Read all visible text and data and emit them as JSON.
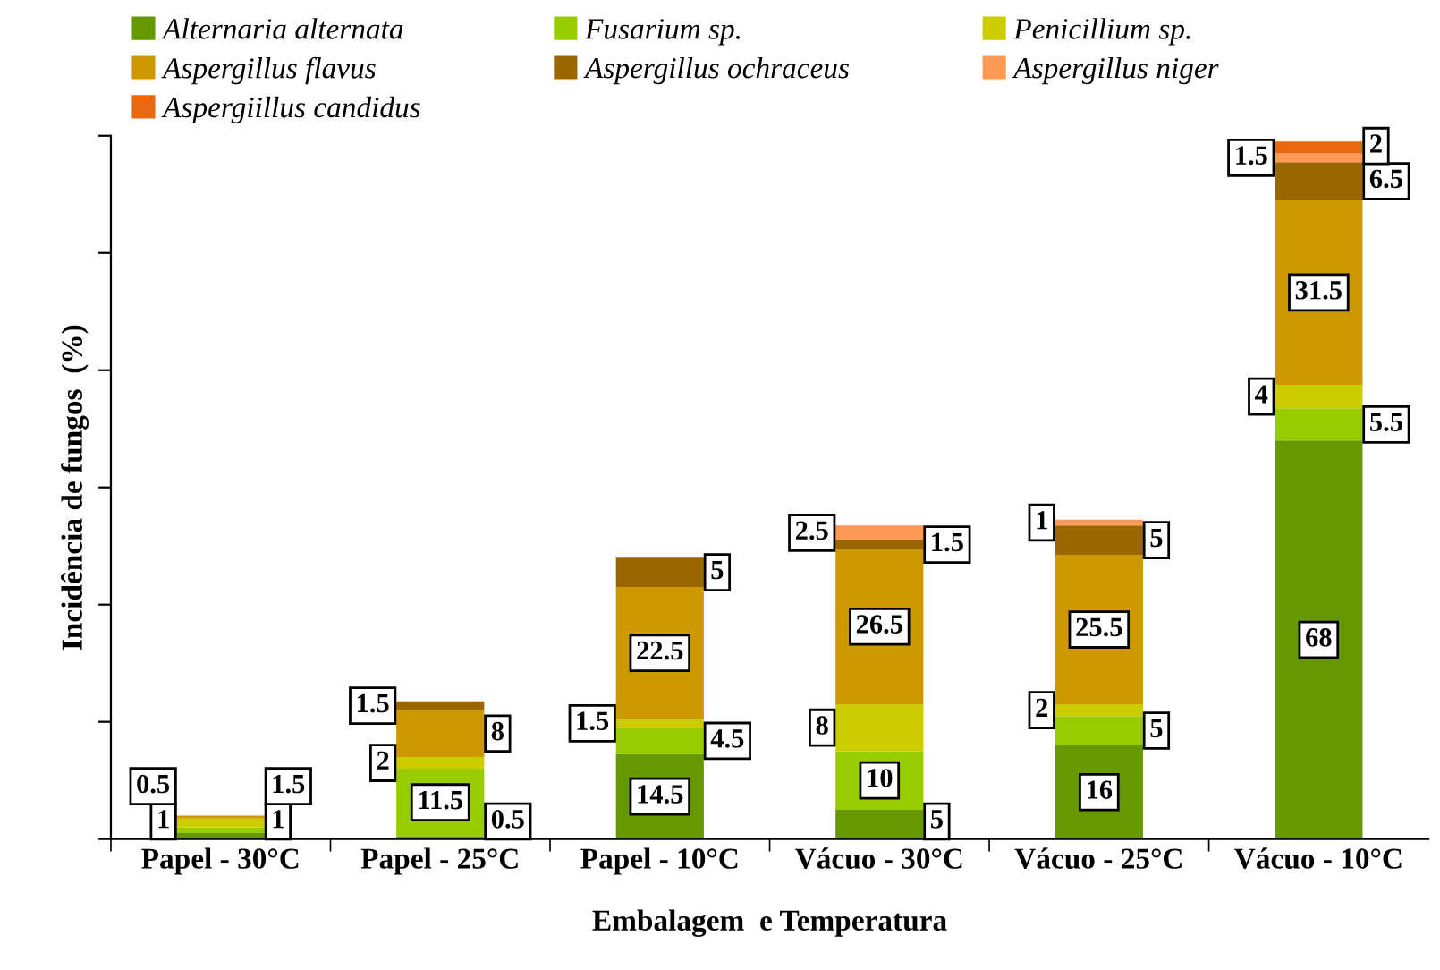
{
  "chart_data": {
    "type": "bar",
    "stacked": true,
    "categories": [
      "Papel - 30°C",
      "Papel - 25°C",
      "Papel - 10°C",
      "Vácuo - 30°C",
      "Vácuo - 25°C",
      "Vácuo - 10°C"
    ],
    "series": [
      {
        "name": "Alternaria alternata",
        "color": "#669900",
        "values": [
          1,
          0.5,
          14.5,
          5,
          16,
          68
        ],
        "value_labels": [
          "1",
          "0.5",
          "14.5",
          "5",
          "16",
          "68"
        ]
      },
      {
        "name": "Fusarium sp.",
        "color": "#99cc00",
        "values": [
          1,
          11.5,
          4.5,
          10,
          5,
          5.5
        ],
        "value_labels": [
          "1",
          "11.5",
          "4.5",
          "10",
          "5",
          "5.5"
        ]
      },
      {
        "name": "Penicillium sp.",
        "color": "#cccc00",
        "values": [
          1.5,
          2,
          1.5,
          8,
          2,
          4
        ],
        "value_labels": [
          "1.5",
          "2",
          "1.5",
          "8",
          "2",
          "4"
        ]
      },
      {
        "name": "Aspergillus flavus",
        "color": "#cc9900",
        "values": [
          0.5,
          8,
          22.5,
          26.5,
          25.5,
          31.5
        ],
        "value_labels": [
          "0.5",
          "8",
          "22.5",
          "26.5",
          "25.5",
          "31.5"
        ]
      },
      {
        "name": "Aspergillus ochraceus",
        "color": "#996600",
        "values": [
          0,
          1.5,
          5,
          1.5,
          5,
          6.5
        ],
        "value_labels": [
          null,
          "1.5",
          "5",
          "1.5",
          "5",
          "6.5"
        ]
      },
      {
        "name": "Aspergillus niger",
        "color": "#ff9955",
        "values": [
          0,
          0,
          0,
          2.5,
          1,
          1.5
        ],
        "value_labels": [
          null,
          null,
          null,
          "2.5",
          "1",
          "1.5"
        ]
      },
      {
        "name": "Aspergiillus candidus",
        "color": "#e8690f",
        "values": [
          0,
          0,
          0,
          0,
          0,
          2
        ],
        "value_labels": [
          null,
          null,
          null,
          null,
          null,
          "2"
        ]
      }
    ],
    "xlabel": "Embalagem  e Temperatura",
    "ylabel": "Incidência de fungos  (%)",
    "ylim": [
      0,
      120
    ],
    "yticks": [
      {
        "value": 0,
        "label": null
      },
      {
        "value": 20,
        "label": null
      },
      {
        "value": 40,
        "label": null
      },
      {
        "value": 60,
        "label": null
      },
      {
        "value": 80,
        "label": null
      },
      {
        "value": 100,
        "label": null
      },
      {
        "value": 120,
        "label": null
      }
    ],
    "tick_labels": "x",
    "grid": false,
    "legend": "top"
  }
}
